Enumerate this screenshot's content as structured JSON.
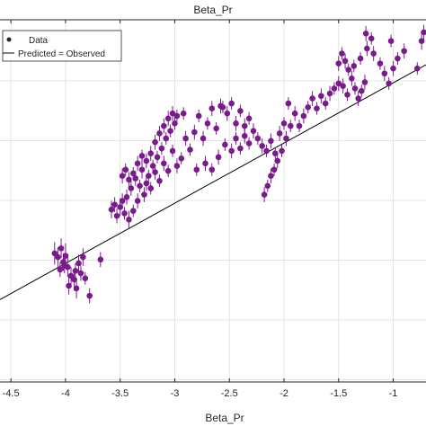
{
  "chart_data": {
    "type": "scatter",
    "title": "Beta_Pr",
    "xlabel": "Beta_Pr",
    "ylabel": "",
    "xlim": [
      -4.6,
      -0.7
    ],
    "ylim": [
      -6.25,
      -3.35
    ],
    "xticks": [
      -4.5,
      -4,
      -3.5,
      -3,
      -2.5,
      -2,
      -1.5,
      -1
    ],
    "xtick_labels": [
      "-4.5",
      "-4",
      "-3.5",
      "-3",
      "-2.5",
      "-2",
      "-1.5",
      "-1"
    ],
    "grid": true,
    "legend": {
      "position": "top-left",
      "entries": [
        "Data",
        "Predicted = Observed"
      ]
    },
    "colors": {
      "data": "#7b1a8c",
      "line": "#000000",
      "grid": "#e4e4e4",
      "axes": "#262626"
    },
    "reference_line": {
      "name": "Predicted = Observed",
      "x": [
        -4.6,
        -0.7
      ],
      "y": [
        -5.59,
        -3.71
      ]
    },
    "series": [
      {
        "name": "Data",
        "points": [
          [
            -4.1,
            -5.22,
            0.09
          ],
          [
            -4.07,
            -5.25,
            0.08
          ],
          [
            -4.04,
            -5.18,
            0.08
          ],
          [
            -4.02,
            -5.29,
            0.07
          ],
          [
            -4.0,
            -5.24,
            0.1
          ],
          [
            -3.98,
            -5.33,
            0.08
          ],
          [
            -3.95,
            -5.4,
            0.07
          ],
          [
            -3.92,
            -5.43,
            0.09
          ],
          [
            -3.9,
            -5.5,
            0.08
          ],
          [
            -3.88,
            -5.3,
            0.07
          ],
          [
            -3.86,
            -5.38,
            0.06
          ],
          [
            -3.84,
            -5.25,
            0.07
          ],
          [
            -4.05,
            -5.35,
            0.06
          ],
          [
            -4.01,
            -5.32,
            0.06
          ],
          [
            -3.97,
            -5.48,
            0.07
          ],
          [
            -3.91,
            -5.36,
            0.06
          ],
          [
            -3.78,
            -5.56,
            0.06
          ],
          [
            -3.82,
            -5.42,
            0.05
          ],
          [
            -3.68,
            -5.27,
            0.06
          ],
          [
            -3.58,
            -4.87,
            0.07
          ],
          [
            -3.55,
            -4.83,
            0.06
          ],
          [
            -3.53,
            -4.92,
            0.06
          ],
          [
            -3.5,
            -4.85,
            0.07
          ],
          [
            -3.48,
            -4.8,
            0.06
          ],
          [
            -3.46,
            -4.9,
            0.05
          ],
          [
            -3.44,
            -4.77,
            0.06
          ],
          [
            -3.42,
            -4.95,
            0.07
          ],
          [
            -3.4,
            -4.7,
            0.06
          ],
          [
            -3.38,
            -4.88,
            0.05
          ],
          [
            -3.36,
            -4.62,
            0.06
          ],
          [
            -3.34,
            -4.8,
            0.06
          ],
          [
            -3.32,
            -4.68,
            0.05
          ],
          [
            -3.3,
            -4.55,
            0.07
          ],
          [
            -3.28,
            -4.75,
            0.06
          ],
          [
            -3.26,
            -4.48,
            0.06
          ],
          [
            -3.24,
            -4.6,
            0.05
          ],
          [
            -3.22,
            -4.42,
            0.06
          ],
          [
            -3.2,
            -4.52,
            0.05
          ],
          [
            -3.18,
            -4.33,
            0.06
          ],
          [
            -3.16,
            -4.45,
            0.05
          ],
          [
            -3.14,
            -4.26,
            0.06
          ],
          [
            -3.12,
            -4.38,
            0.05
          ],
          [
            -3.1,
            -4.2,
            0.06
          ],
          [
            -3.08,
            -4.3,
            0.05
          ],
          [
            -3.06,
            -4.14,
            0.06
          ],
          [
            -3.04,
            -4.24,
            0.05
          ],
          [
            -3.02,
            -4.1,
            0.06
          ],
          [
            -3.0,
            -4.18,
            0.05
          ],
          [
            -2.98,
            -4.12,
            0.05
          ],
          [
            -3.48,
            -4.6,
            0.06
          ],
          [
            -3.45,
            -4.55,
            0.05
          ],
          [
            -3.42,
            -4.63,
            0.06
          ],
          [
            -3.38,
            -4.58,
            0.05
          ],
          [
            -3.34,
            -4.5,
            0.06
          ],
          [
            -3.3,
            -4.44,
            0.05
          ],
          [
            -3.26,
            -4.66,
            0.06
          ],
          [
            -3.22,
            -4.7,
            0.05
          ],
          [
            -3.18,
            -4.57,
            0.06
          ],
          [
            -3.14,
            -4.64,
            0.05
          ],
          [
            -3.1,
            -4.5,
            0.06
          ],
          [
            -3.06,
            -4.56,
            0.05
          ],
          [
            -3.02,
            -4.4,
            0.05
          ],
          [
            -2.98,
            -4.52,
            0.06
          ],
          [
            -2.94,
            -4.46,
            0.05
          ],
          [
            -2.9,
            -4.3,
            0.06
          ],
          [
            -2.86,
            -4.39,
            0.05
          ],
          [
            -2.82,
            -4.25,
            0.06
          ],
          [
            -2.78,
            -4.12,
            0.05
          ],
          [
            -2.74,
            -4.3,
            0.06
          ],
          [
            -2.7,
            -4.18,
            0.05
          ],
          [
            -2.66,
            -4.06,
            0.06
          ],
          [
            -2.62,
            -4.22,
            0.05
          ],
          [
            -2.58,
            -4.04,
            0.06
          ],
          [
            -2.92,
            -4.1,
            0.05
          ],
          [
            -2.8,
            -4.55,
            0.05
          ],
          [
            -2.72,
            -4.5,
            0.06
          ],
          [
            -2.66,
            -4.55,
            0.05
          ],
          [
            -2.6,
            -4.45,
            0.06
          ],
          [
            -2.54,
            -4.35,
            0.05
          ],
          [
            -2.48,
            -4.4,
            0.06
          ],
          [
            -2.44,
            -4.3,
            0.05
          ],
          [
            -2.4,
            -4.38,
            0.05
          ],
          [
            -2.36,
            -4.28,
            0.06
          ],
          [
            -2.32,
            -4.34,
            0.05
          ],
          [
            -2.56,
            -4.05,
            0.05
          ],
          [
            -2.52,
            -4.1,
            0.06
          ],
          [
            -2.48,
            -4.02,
            0.05
          ],
          [
            -2.44,
            -4.18,
            0.06
          ],
          [
            -2.4,
            -4.08,
            0.05
          ],
          [
            -2.36,
            -4.2,
            0.06
          ],
          [
            -2.32,
            -4.14,
            0.05
          ],
          [
            -2.28,
            -4.24,
            0.06
          ],
          [
            -2.24,
            -4.3,
            0.05
          ],
          [
            -2.2,
            -4.36,
            0.06
          ],
          [
            -2.16,
            -4.4,
            0.05
          ],
          [
            -2.12,
            -4.32,
            0.06
          ],
          [
            -2.08,
            -4.42,
            0.05
          ],
          [
            -2.04,
            -4.26,
            0.06
          ],
          [
            -2.0,
            -4.18,
            0.05
          ],
          [
            -2.18,
            -4.75,
            0.06
          ],
          [
            -2.15,
            -4.68,
            0.05
          ],
          [
            -2.12,
            -4.6,
            0.06
          ],
          [
            -2.09,
            -4.55,
            0.05
          ],
          [
            -2.06,
            -4.48,
            0.06
          ],
          [
            -2.02,
            -4.4,
            0.05
          ],
          [
            -1.98,
            -4.3,
            0.06
          ],
          [
            -1.94,
            -4.2,
            0.05
          ],
          [
            -1.9,
            -4.1,
            0.06
          ],
          [
            -1.86,
            -4.2,
            0.05
          ],
          [
            -1.82,
            -4.12,
            0.06
          ],
          [
            -1.78,
            -4.05,
            0.05
          ],
          [
            -1.74,
            -3.98,
            0.06
          ],
          [
            -1.7,
            -4.06,
            0.05
          ],
          [
            -1.66,
            -3.96,
            0.06
          ],
          [
            -1.62,
            -4.02,
            0.05
          ],
          [
            -1.58,
            -3.94,
            0.06
          ],
          [
            -1.54,
            -3.9,
            0.05
          ],
          [
            -1.5,
            -3.86,
            0.06
          ],
          [
            -1.96,
            -4.02,
            0.05
          ],
          [
            -1.5,
            -3.7,
            0.06
          ],
          [
            -1.47,
            -3.62,
            0.05
          ],
          [
            -1.44,
            -3.68,
            0.06
          ],
          [
            -1.41,
            -3.75,
            0.05
          ],
          [
            -1.38,
            -3.82,
            0.06
          ],
          [
            -1.35,
            -3.9,
            0.05
          ],
          [
            -1.32,
            -3.98,
            0.06
          ],
          [
            -1.29,
            -3.92,
            0.05
          ],
          [
            -1.26,
            -3.85,
            0.06
          ],
          [
            -1.42,
            -3.95,
            0.05
          ],
          [
            -1.46,
            -3.88,
            0.06
          ],
          [
            -1.36,
            -3.72,
            0.05
          ],
          [
            -1.3,
            -3.66,
            0.05
          ],
          [
            -1.24,
            -3.58,
            0.06
          ],
          [
            -1.2,
            -3.5,
            0.05
          ],
          [
            -1.18,
            -3.62,
            0.06
          ],
          [
            -1.12,
            -3.7,
            0.05
          ],
          [
            -1.08,
            -3.78,
            0.06
          ],
          [
            -1.04,
            -3.86,
            0.05
          ],
          [
            -1.0,
            -3.74,
            0.06
          ],
          [
            -0.96,
            -3.66,
            0.05
          ],
          [
            -0.9,
            -3.6,
            0.06
          ],
          [
            -1.25,
            -3.46,
            0.06
          ],
          [
            -1.02,
            -3.52,
            0.05
          ],
          [
            -0.78,
            -3.74,
            0.05
          ],
          [
            -0.74,
            -3.52,
            0.07
          ],
          [
            -0.72,
            -3.45,
            0.06
          ]
        ]
      }
    ]
  }
}
